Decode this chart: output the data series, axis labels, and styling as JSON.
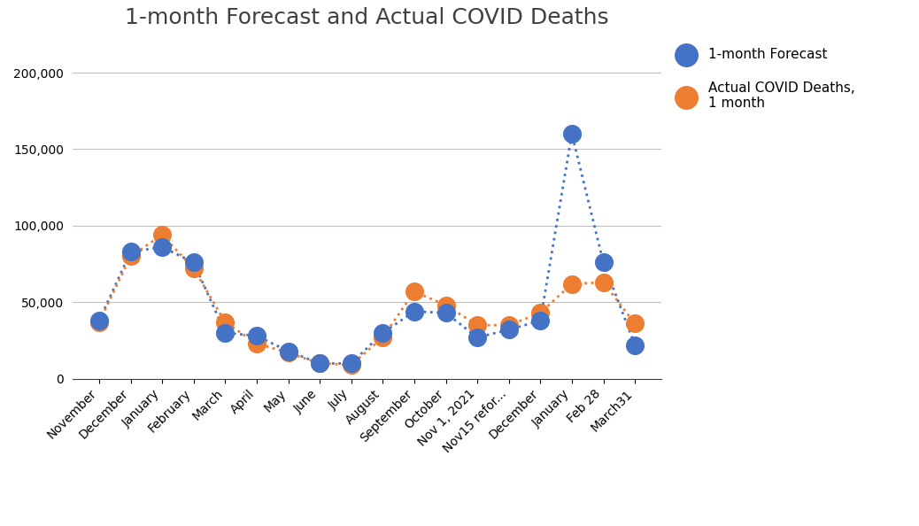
{
  "title": "1-month Forecast and Actual COVID Deaths",
  "categories": [
    "November",
    "December",
    "January",
    "February",
    "March",
    "April",
    "May",
    "June",
    "July",
    "August",
    "September",
    "October",
    "Nov 1, 2021",
    "Nov15 refor...",
    "December",
    "January",
    "Feb 28",
    "March31"
  ],
  "forecast": [
    38000,
    83000,
    86000,
    76000,
    30000,
    28000,
    18000,
    10000,
    10000,
    30000,
    44000,
    43000,
    27000,
    32000,
    38000,
    160000,
    76000,
    22000
  ],
  "actual": [
    37000,
    80000,
    94000,
    72000,
    37000,
    23000,
    17000,
    10000,
    9000,
    27000,
    57000,
    48000,
    35000,
    35000,
    43000,
    62000,
    63000,
    36000
  ],
  "forecast_color": "#4472C4",
  "actual_color": "#ED7D31",
  "forecast_line_color": "#4472C4",
  "actual_line_color": "#ED7D31",
  "ylim": [
    0,
    220000
  ],
  "yticks": [
    0,
    50000,
    100000,
    150000,
    200000
  ],
  "background_color": "#ffffff",
  "grid_color": "#BFBFBF",
  "title_fontsize": 18,
  "title_color": "#404040",
  "legend_label_forecast": "1-month Forecast",
  "legend_label_actual": "Actual COVID Deaths,\n1 month",
  "marker_size": 200,
  "tick_fontsize": 10,
  "legend_fontsize": 11
}
